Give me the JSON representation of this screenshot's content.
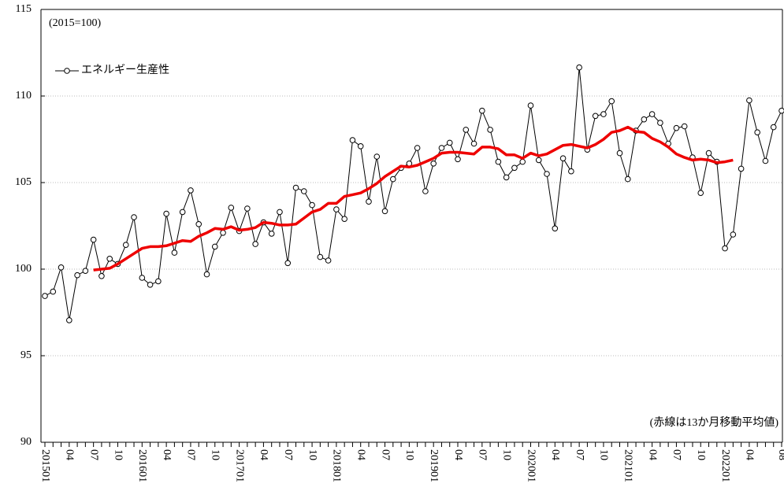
{
  "chart_data": {
    "type": "line",
    "annotations": [
      "(2015=100)",
      "(赤線は13か月移動平均値)"
    ],
    "categories": [
      "201501",
      null,
      null,
      "04",
      null,
      null,
      "07",
      null,
      null,
      "10",
      null,
      null,
      "201601",
      null,
      null,
      "04",
      null,
      null,
      "07",
      null,
      null,
      "10",
      null,
      null,
      "201701",
      null,
      null,
      "04",
      null,
      null,
      "07",
      null,
      null,
      "10",
      null,
      null,
      "201801",
      null,
      null,
      "04",
      null,
      null,
      "07",
      null,
      null,
      "10",
      null,
      null,
      "201901",
      null,
      null,
      "04",
      null,
      null,
      "07",
      null,
      null,
      "10",
      null,
      null,
      "202001",
      null,
      null,
      "04",
      null,
      null,
      "07",
      null,
      null,
      "10",
      null,
      null,
      "202101",
      null,
      null,
      "04",
      null,
      null,
      "07",
      null,
      null,
      "10",
      null,
      null,
      "202201",
      null,
      null,
      "04",
      null,
      null,
      null,
      "08"
    ],
    "series": [
      {
        "name": "エネルギー生産性",
        "color": "#000000",
        "marker": "circle",
        "values": [
          98.45,
          98.7,
          100.1,
          97.05,
          99.65,
          99.9,
          101.7,
          99.6,
          100.6,
          100.3,
          101.4,
          103.0,
          99.5,
          99.1,
          99.3,
          103.2,
          100.95,
          103.3,
          104.55,
          102.6,
          99.7,
          101.3,
          102.1,
          103.55,
          102.2,
          103.5,
          101.45,
          102.7,
          102.05,
          103.3,
          100.35,
          104.7,
          104.5,
          103.7,
          100.7,
          100.5,
          103.45,
          102.9,
          107.45,
          107.1,
          103.9,
          106.5,
          103.35,
          105.2,
          105.85,
          106.1,
          107.0,
          104.5,
          106.1,
          107.0,
          107.3,
          106.35,
          108.05,
          107.25,
          109.15,
          108.05,
          106.2,
          105.3,
          105.85,
          106.2,
          109.45,
          106.3,
          105.5,
          102.35,
          106.4,
          105.65,
          111.65,
          106.9,
          108.85,
          108.95,
          109.7,
          106.7,
          105.2,
          108.0,
          108.65,
          108.95,
          108.45,
          107.25,
          108.15,
          108.25,
          106.45,
          104.4,
          106.7,
          106.2,
          101.2,
          102.0,
          105.8,
          109.75,
          107.9,
          106.25,
          108.2,
          109.15
        ]
      },
      {
        "color": "#ee0000",
        "values": [
          null,
          null,
          null,
          null,
          null,
          null,
          99.95,
          100.0,
          100.05,
          100.3,
          100.6,
          100.9,
          101.2,
          101.3,
          101.3,
          101.35,
          101.5,
          101.65,
          101.6,
          101.9,
          102.1,
          102.35,
          102.3,
          102.45,
          102.25,
          102.3,
          102.4,
          102.7,
          102.65,
          102.55,
          102.55,
          102.6,
          102.95,
          103.3,
          103.45,
          103.8,
          103.8,
          104.2,
          104.3,
          104.4,
          104.65,
          104.95,
          105.35,
          105.65,
          105.95,
          105.9,
          106.0,
          106.2,
          106.4,
          106.7,
          106.75,
          106.75,
          106.7,
          106.65,
          107.05,
          107.05,
          106.95,
          106.6,
          106.6,
          106.4,
          106.7,
          106.55,
          106.65,
          106.9,
          107.15,
          107.2,
          107.1,
          107.0,
          107.2,
          107.5,
          107.9,
          108.0,
          108.2,
          107.95,
          107.9,
          107.55,
          107.35,
          107.05,
          106.65,
          106.45,
          106.3,
          106.35,
          106.3,
          106.15,
          106.2,
          106.3,
          null,
          null,
          null,
          null,
          null,
          null
        ]
      }
    ],
    "ylim": [
      90,
      115
    ],
    "yticks": [
      90,
      95,
      100,
      105,
      110,
      115
    ],
    "grid": true
  }
}
